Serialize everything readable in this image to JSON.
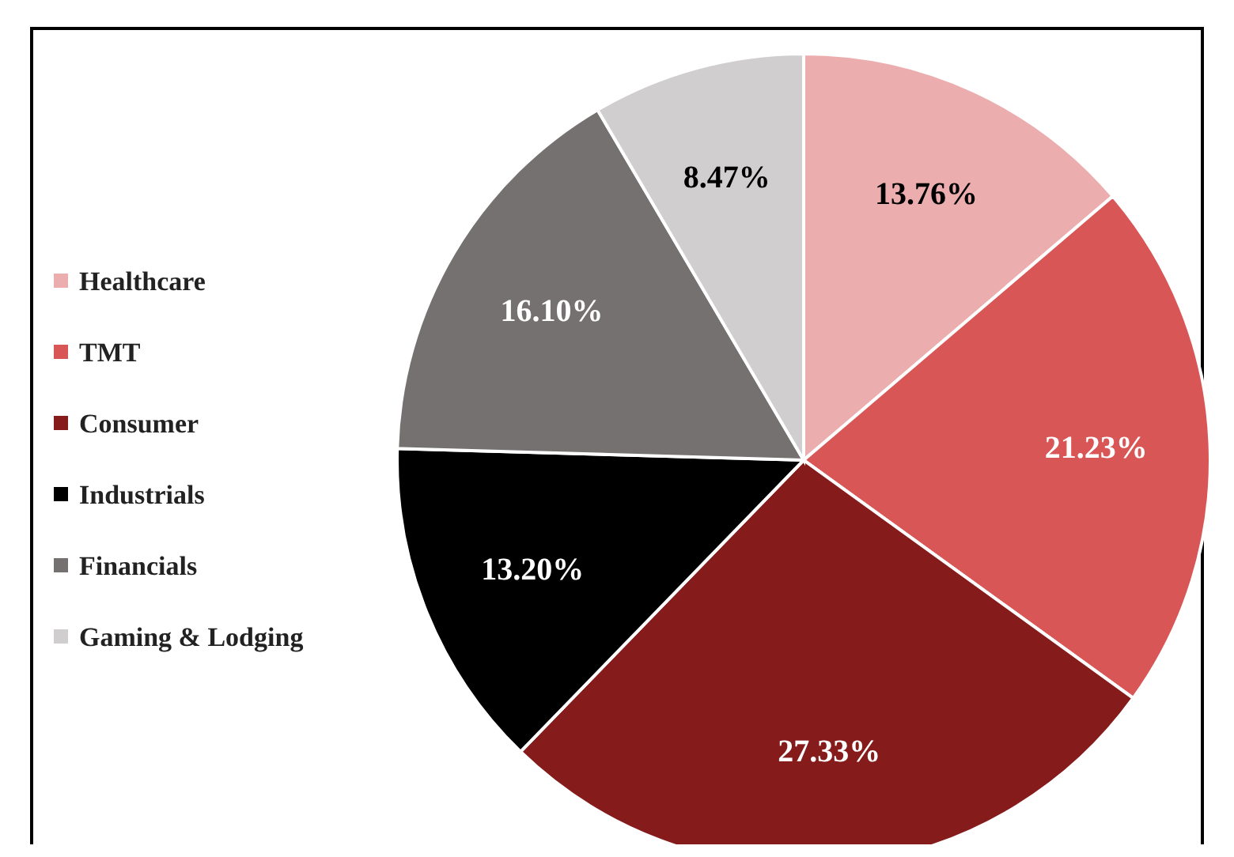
{
  "chart_data": {
    "type": "pie",
    "categories": [
      "Healthcare",
      "TMT",
      "Consumer",
      "Industrials",
      "Financials",
      "Gaming & Lodging"
    ],
    "values": [
      13.76,
      21.23,
      27.33,
      13.2,
      16.1,
      8.47
    ],
    "value_labels": [
      "13.76%",
      "21.23%",
      "27.33%",
      "13.20%",
      "16.10%",
      "8.47%"
    ],
    "colors": [
      "#ebadad",
      "#d95656",
      "#861b1b",
      "#000000",
      "#767171",
      "#d0cece"
    ],
    "legend": "left"
  }
}
